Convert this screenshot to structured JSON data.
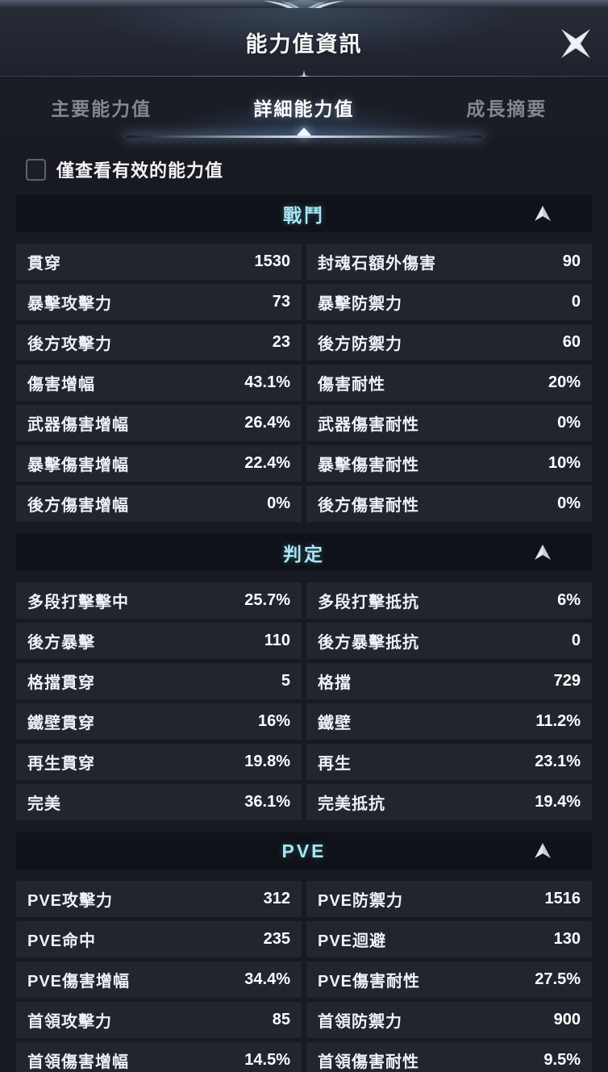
{
  "window": {
    "title": "能力值資訊"
  },
  "icons": {
    "close": "four-point-star-x-cross",
    "section_collapse": "arrow-up",
    "divider_ornament": "four-point-diamond",
    "top_ornament": "winged-v-flourish"
  },
  "colors": {
    "panel_bg": "#171a21",
    "cell_bg": "#21252e",
    "section_header_bg": "#0f1218",
    "accent_cyan": "#a6e6f2",
    "text_white": "#f2f4f7",
    "tab_inactive": "#83878f"
  },
  "tabs": [
    {
      "label": "主要能力值",
      "active": false
    },
    {
      "label": "詳細能力值",
      "active": true
    },
    {
      "label": "成長摘要",
      "active": false
    }
  ],
  "filter": {
    "label": "僅查看有效的能力值",
    "checked": false
  },
  "sections": [
    {
      "title": "戰鬥",
      "collapsed": false,
      "rows": [
        {
          "left": {
            "label": "貫穿",
            "value": "1530"
          },
          "right": {
            "label": "封魂石額外傷害",
            "value": "90"
          }
        },
        {
          "left": {
            "label": "暴擊攻擊力",
            "value": "73"
          },
          "right": {
            "label": "暴擊防禦力",
            "value": "0"
          }
        },
        {
          "left": {
            "label": "後方攻擊力",
            "value": "23"
          },
          "right": {
            "label": "後方防禦力",
            "value": "60"
          }
        },
        {
          "left": {
            "label": "傷害增幅",
            "value": "43.1%"
          },
          "right": {
            "label": "傷害耐性",
            "value": "20%"
          }
        },
        {
          "left": {
            "label": "武器傷害增幅",
            "value": "26.4%"
          },
          "right": {
            "label": "武器傷害耐性",
            "value": "0%"
          }
        },
        {
          "left": {
            "label": "暴擊傷害增幅",
            "value": "22.4%"
          },
          "right": {
            "label": "暴擊傷害耐性",
            "value": "10%"
          }
        },
        {
          "left": {
            "label": "後方傷害增幅",
            "value": "0%"
          },
          "right": {
            "label": "後方傷害耐性",
            "value": "0%"
          }
        }
      ]
    },
    {
      "title": "判定",
      "collapsed": false,
      "rows": [
        {
          "left": {
            "label": "多段打擊擊中",
            "value": "25.7%"
          },
          "right": {
            "label": "多段打擊抵抗",
            "value": "6%"
          }
        },
        {
          "left": {
            "label": "後方暴擊",
            "value": "110"
          },
          "right": {
            "label": "後方暴擊抵抗",
            "value": "0"
          }
        },
        {
          "left": {
            "label": "格擋貫穿",
            "value": "5"
          },
          "right": {
            "label": "格擋",
            "value": "729"
          }
        },
        {
          "left": {
            "label": "鐵壁貫穿",
            "value": "16%"
          },
          "right": {
            "label": "鐵壁",
            "value": "11.2%"
          }
        },
        {
          "left": {
            "label": "再生貫穿",
            "value": "19.8%"
          },
          "right": {
            "label": "再生",
            "value": "23.1%"
          }
        },
        {
          "left": {
            "label": "完美",
            "value": "36.1%"
          },
          "right": {
            "label": "完美抵抗",
            "value": "19.4%"
          }
        }
      ]
    },
    {
      "title": "PVE",
      "collapsed": false,
      "rows": [
        {
          "left": {
            "label": "PVE攻擊力",
            "value": "312"
          },
          "right": {
            "label": "PVE防禦力",
            "value": "1516"
          }
        },
        {
          "left": {
            "label": "PVE命中",
            "value": "235"
          },
          "right": {
            "label": "PVE迴避",
            "value": "130"
          }
        },
        {
          "left": {
            "label": "PVE傷害增幅",
            "value": "34.4%"
          },
          "right": {
            "label": "PVE傷害耐性",
            "value": "27.5%"
          }
        },
        {
          "left": {
            "label": "首領攻擊力",
            "value": "85"
          },
          "right": {
            "label": "首領防禦力",
            "value": "900"
          }
        },
        {
          "left": {
            "label": "首領傷害增幅",
            "value": "14.5%"
          },
          "right": {
            "label": "首領傷害耐性",
            "value": "9.5%"
          }
        }
      ]
    }
  ]
}
